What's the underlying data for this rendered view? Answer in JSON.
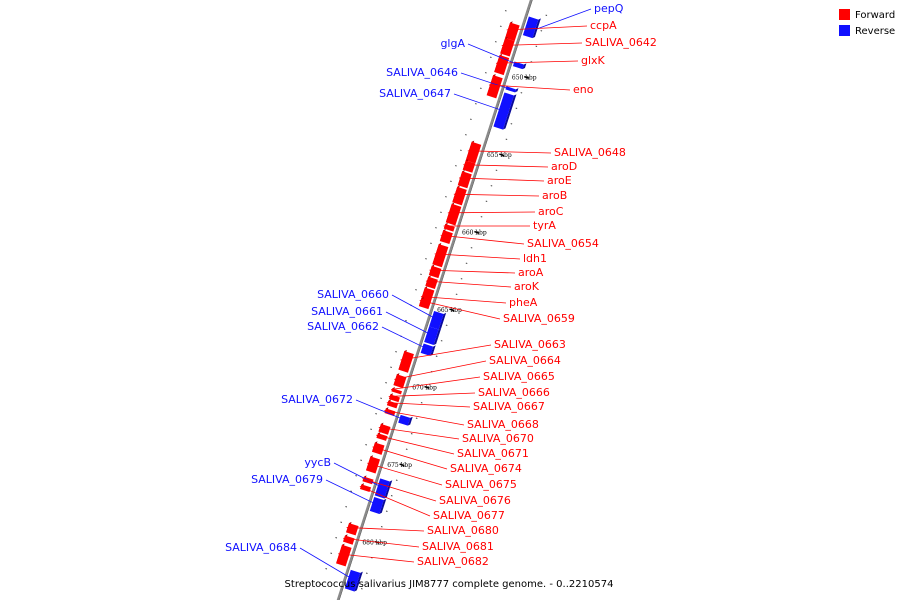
{
  "caption": "Streptococcus salivarius JIM8777 complete genome. - 0..2210574",
  "colors": {
    "forward": "#ff0000",
    "reverse": "#1010ff",
    "axis": "#8a8a8a"
  },
  "legend": [
    {
      "label": "Forward",
      "color": "#ff0000"
    },
    {
      "label": "Reverse",
      "color": "#1010ff"
    }
  ],
  "ticks": [
    {
      "label": "650 kbp",
      "kbp": 650
    },
    {
      "label": "655 kbp",
      "kbp": 655
    },
    {
      "label": "660 kbp",
      "kbp": 660
    },
    {
      "label": "665 kbp",
      "kbp": 665
    },
    {
      "label": "670 kbp",
      "kbp": 670
    },
    {
      "label": "675 kbp",
      "kbp": 675
    },
    {
      "label": "680 kbp",
      "kbp": 680
    }
  ],
  "genes": [
    {
      "name": "pepQ",
      "strand": "reverse",
      "kbp": 646.4,
      "len": 1.2
    },
    {
      "name": "ccpA",
      "strand": "forward",
      "kbp": 647.1,
      "len": 1.0
    },
    {
      "name": "SALIVA_0642",
      "strand": "forward",
      "kbp": 648.1,
      "len": 1.0
    },
    {
      "name": "glxK",
      "strand": "forward",
      "kbp": 649.2,
      "len": 1.1
    },
    {
      "name": "glgA",
      "strand": "reverse",
      "kbp": 649.3,
      "len": 0.3
    },
    {
      "name": "SALIVA_0646",
      "strand": "reverse",
      "kbp": 650.9,
      "len": 0.2
    },
    {
      "name": "eno",
      "strand": "forward",
      "kbp": 650.5,
      "len": 1.3
    },
    {
      "name": "SALIVA_0647",
      "strand": "reverse",
      "kbp": 651.3,
      "len": 2.2
    },
    {
      "name": "SALIVA_0648",
      "strand": "forward",
      "kbp": 654.8,
      "len": 1.2
    },
    {
      "name": "aroD",
      "strand": "forward",
      "kbp": 656.0,
      "len": 0.6
    },
    {
      "name": "aroE",
      "strand": "forward",
      "kbp": 656.7,
      "len": 0.9
    },
    {
      "name": "aroB",
      "strand": "forward",
      "kbp": 657.7,
      "len": 1.0
    },
    {
      "name": "aroC",
      "strand": "forward",
      "kbp": 658.8,
      "len": 1.2
    },
    {
      "name": "tyrA",
      "strand": "forward",
      "kbp": 660.1,
      "len": 0.3
    },
    {
      "name": "SALIVA_0654",
      "strand": "forward",
      "kbp": 660.5,
      "len": 0.7
    },
    {
      "name": "ldh1",
      "strand": "forward",
      "kbp": 661.4,
      "len": 1.3
    },
    {
      "name": "aroA",
      "strand": "forward",
      "kbp": 662.8,
      "len": 0.6
    },
    {
      "name": "aroK",
      "strand": "forward",
      "kbp": 663.5,
      "len": 0.6
    },
    {
      "name": "pheA",
      "strand": "forward",
      "kbp": 664.2,
      "len": 1.2
    },
    {
      "name": "SALIVA_0659",
      "strand": "forward",
      "kbp": 664.9,
      "len": 0.3
    },
    {
      "name": "SALIVA_0660",
      "strand": "reverse",
      "kbp": 665.4,
      "len": 1.0
    },
    {
      "name": "SALIVA_0661",
      "strand": "reverse",
      "kbp": 666.4,
      "len": 1.0
    },
    {
      "name": "SALIVA_0662",
      "strand": "reverse",
      "kbp": 667.5,
      "len": 0.6
    },
    {
      "name": "SALIVA_0663",
      "strand": "forward",
      "kbp": 668.3,
      "len": 1.2
    },
    {
      "name": "SALIVA_0664",
      "strand": "forward",
      "kbp": 669.8,
      "len": 0.7
    },
    {
      "name": "SALIVA_0665",
      "strand": "forward",
      "kbp": 670.7,
      "len": 0.2
    },
    {
      "name": "SALIVA_0666",
      "strand": "forward",
      "kbp": 671.1,
      "len": 0.3
    },
    {
      "name": "SALIVA_0667",
      "strand": "forward",
      "kbp": 671.5,
      "len": 0.3
    },
    {
      "name": "SALIVA_0672",
      "strand": "reverse",
      "kbp": 672.1,
      "len": 0.5
    },
    {
      "name": "SALIVA_0668",
      "strand": "forward",
      "kbp": 672.0,
      "len": 0.3
    },
    {
      "name": "SALIVA_0670",
      "strand": "forward",
      "kbp": 673.0,
      "len": 0.5
    },
    {
      "name": "SALIVA_0671",
      "strand": "forward",
      "kbp": 673.6,
      "len": 0.3
    },
    {
      "name": "SALIVA_0674",
      "strand": "forward",
      "kbp": 674.2,
      "len": 0.6
    },
    {
      "name": "SALIVA_0675",
      "strand": "forward",
      "kbp": 675.1,
      "len": 0.9
    },
    {
      "name": "yycB",
      "strand": "reverse",
      "kbp": 676.2,
      "len": 1.1
    },
    {
      "name": "SALIVA_0679",
      "strand": "reverse",
      "kbp": 677.4,
      "len": 0.9
    },
    {
      "name": "SALIVA_0676",
      "strand": "forward",
      "kbp": 676.4,
      "len": 0.3
    },
    {
      "name": "SALIVA_0677",
      "strand": "forward",
      "kbp": 676.9,
      "len": 0.3
    },
    {
      "name": "SALIVA_0680",
      "strand": "forward",
      "kbp": 679.4,
      "len": 0.6
    },
    {
      "name": "SALIVA_0681",
      "strand": "forward",
      "kbp": 680.2,
      "len": 0.4
    },
    {
      "name": "SALIVA_0682",
      "strand": "forward",
      "kbp": 680.8,
      "len": 1.2
    },
    {
      "name": "SALIVA_0684",
      "strand": "reverse",
      "kbp": 682.1,
      "len": 1.2
    }
  ]
}
